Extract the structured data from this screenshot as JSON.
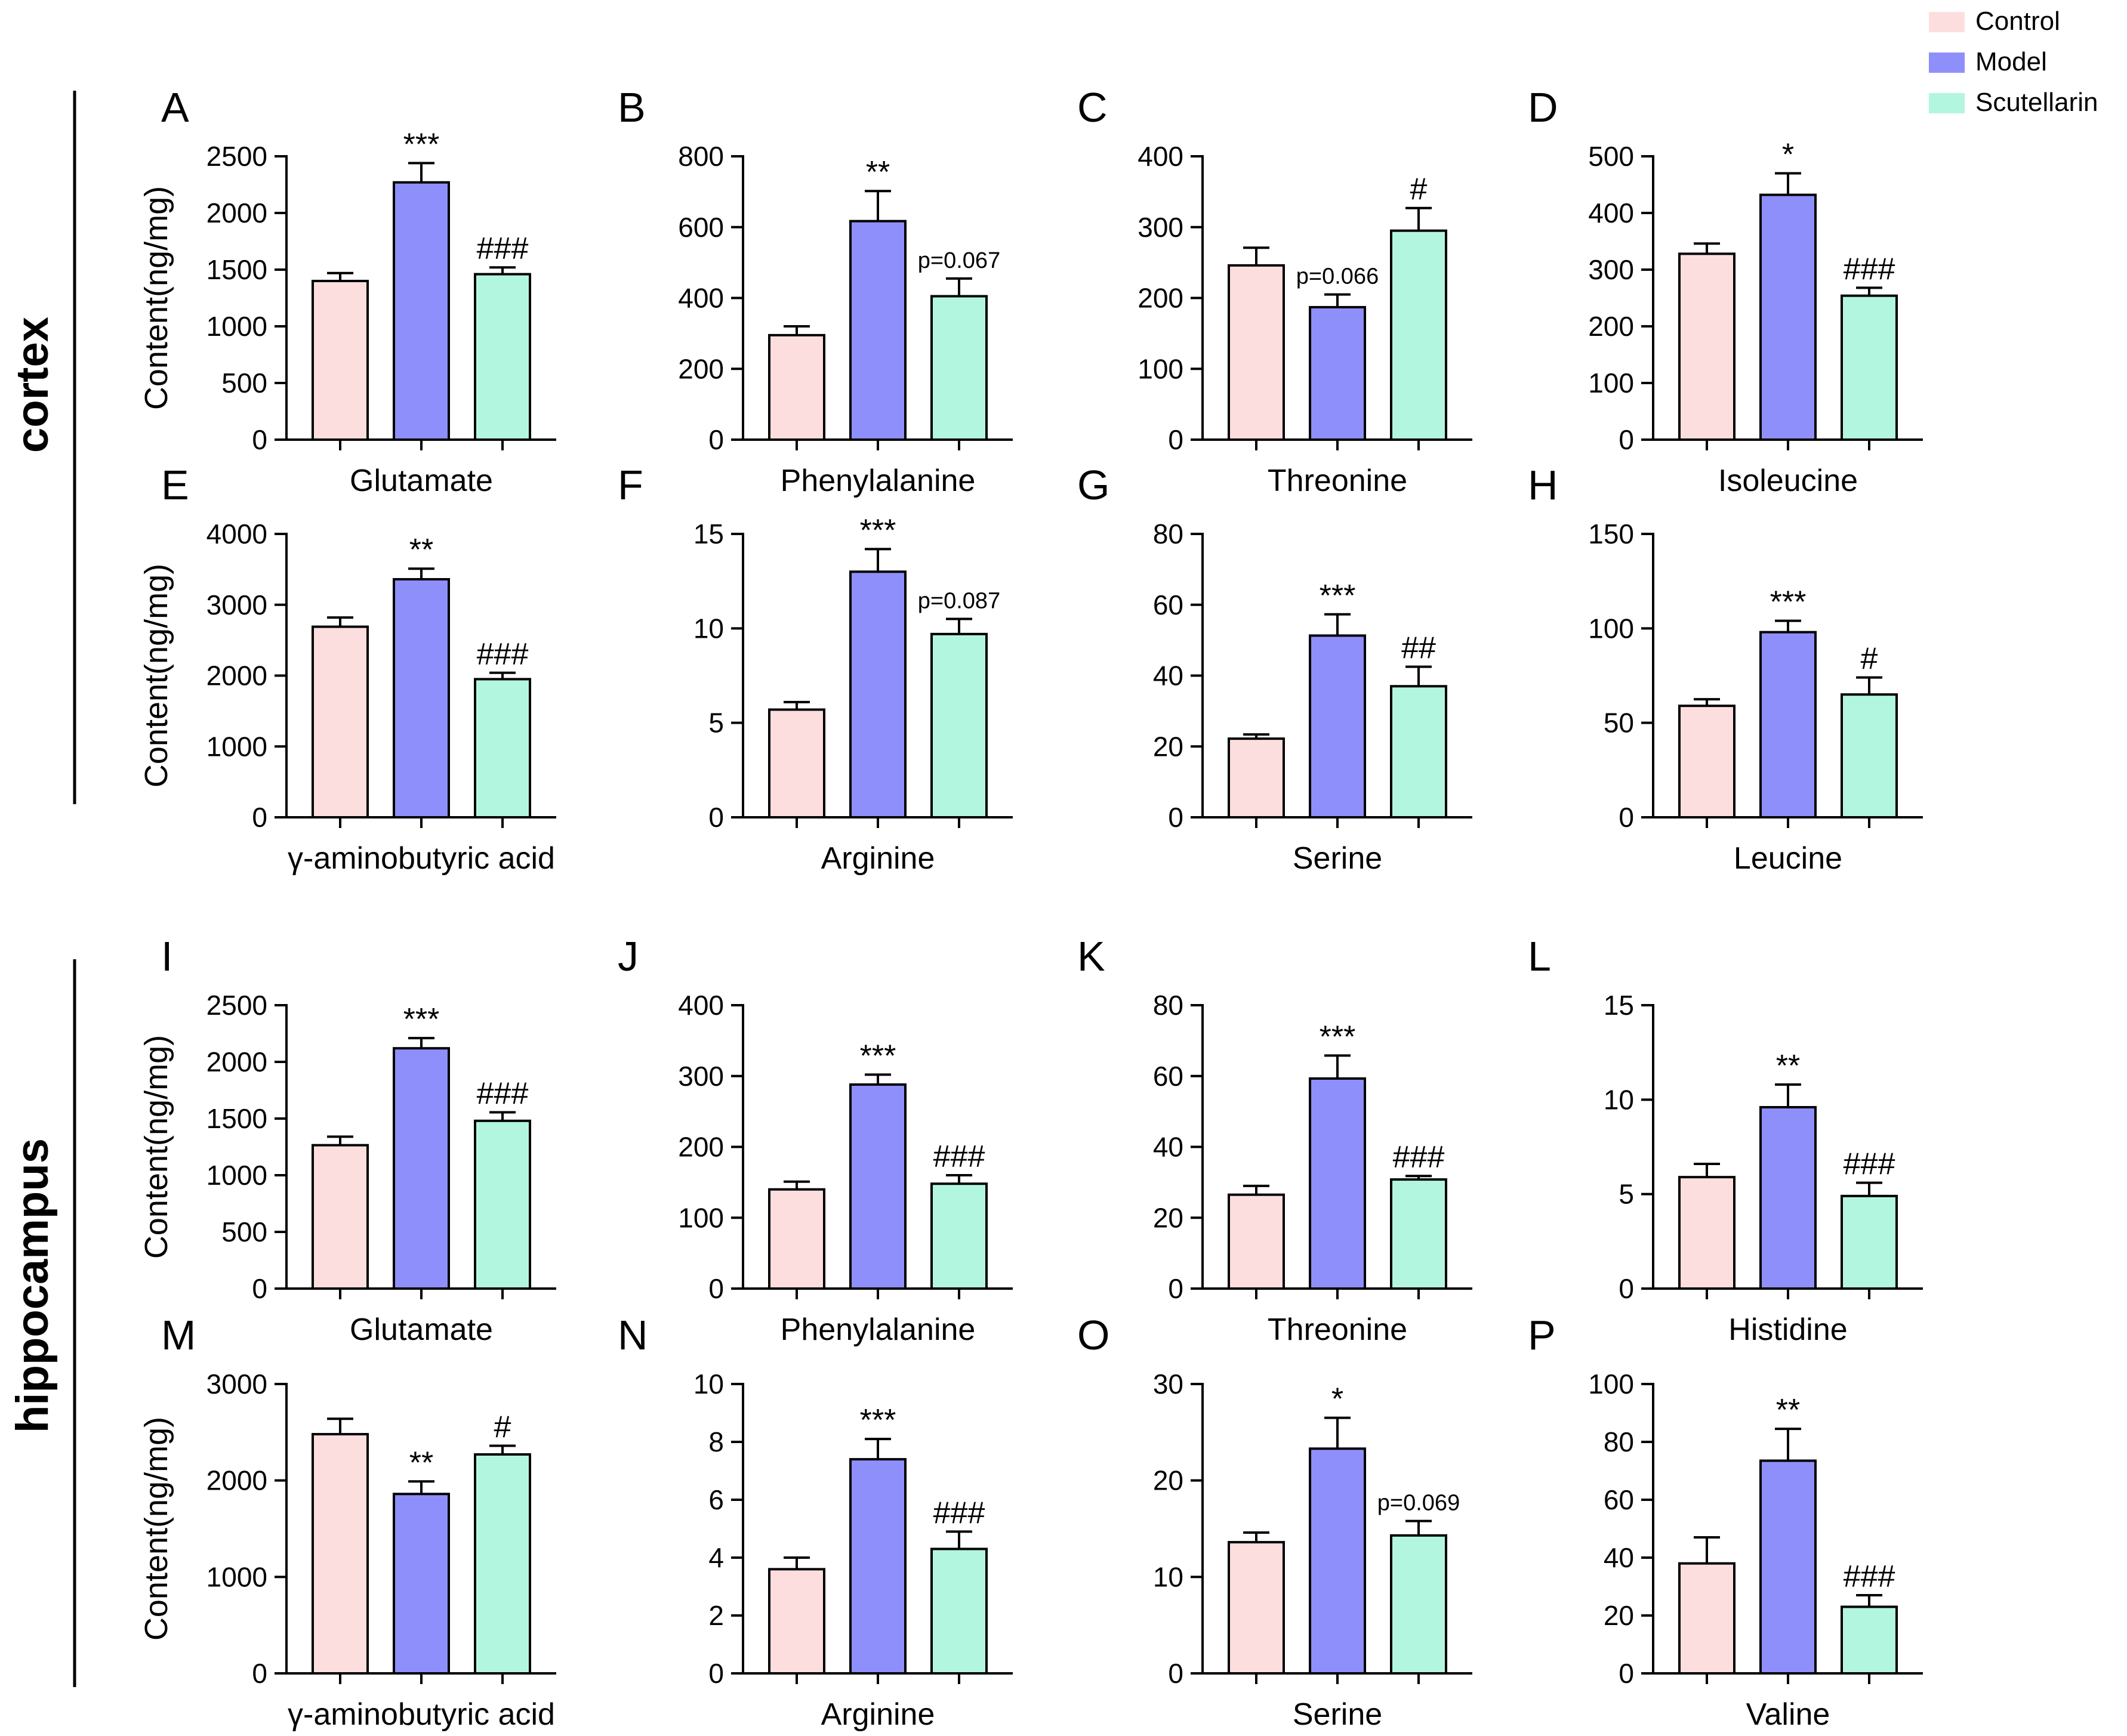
{
  "figure": {
    "groups": [
      {
        "name": "Control",
        "color": "#FDDEDE"
      },
      {
        "name": "Model",
        "color": "#8F8FFB"
      },
      {
        "name": "Scutellarin",
        "color": "#B3F6DF"
      }
    ],
    "region_labels": [
      "cortex",
      "hippocampus"
    ],
    "ylabel": "Content(ng/mg)"
  },
  "chart_data": [
    {
      "panel": "A",
      "type": "bar",
      "title": "Glutamate",
      "ylabel": "Content(ng/mg)",
      "ylim": [
        0,
        2500
      ],
      "ticks": [
        "0",
        "500",
        "1000",
        "1500",
        "2000",
        "2500"
      ],
      "categories": [
        "Control",
        "Model",
        "Scutellarin"
      ],
      "values": [
        1400,
        2270,
        1460
      ],
      "errors": [
        70,
        170,
        60
      ],
      "annotations": [
        "",
        "***",
        "###"
      ]
    },
    {
      "panel": "B",
      "type": "bar",
      "title": "Phenylalanine",
      "ylabel": "",
      "ylim": [
        0,
        800
      ],
      "ticks": [
        "0",
        "200",
        "400",
        "600",
        "800"
      ],
      "categories": [
        "Control",
        "Model",
        "Scutellarin"
      ],
      "values": [
        295,
        617,
        405
      ],
      "errors": [
        25,
        85,
        50
      ],
      "annotations": [
        "",
        "**",
        "p=0.067"
      ]
    },
    {
      "panel": "C",
      "type": "bar",
      "title": "Threonine",
      "ylabel": "",
      "ylim": [
        0,
        400
      ],
      "ticks": [
        "0",
        "100",
        "200",
        "300",
        "400"
      ],
      "categories": [
        "Control",
        "Model",
        "Scutellarin"
      ],
      "values": [
        246,
        187,
        295
      ],
      "errors": [
        25,
        18,
        32
      ],
      "annotations": [
        "",
        "p=0.066",
        "#"
      ]
    },
    {
      "panel": "D",
      "type": "bar",
      "title": "Isoleucine",
      "ylabel": "",
      "ylim": [
        0,
        500
      ],
      "ticks": [
        "0",
        "100",
        "200",
        "300",
        "400",
        "500"
      ],
      "categories": [
        "Control",
        "Model",
        "Scutellarin"
      ],
      "values": [
        328,
        432,
        254
      ],
      "errors": [
        18,
        38,
        14
      ],
      "annotations": [
        "",
        "*",
        "###"
      ]
    },
    {
      "panel": "E",
      "type": "bar",
      "title": "γ-aminobutyric acid",
      "ylabel": "Content(ng/mg)",
      "ylim": [
        0,
        4000
      ],
      "ticks": [
        "0",
        "1000",
        "2000",
        "3000",
        "4000"
      ],
      "categories": [
        "Control",
        "Model",
        "Scutellarin"
      ],
      "values": [
        2690,
        3360,
        1950
      ],
      "errors": [
        130,
        150,
        90
      ],
      "annotations": [
        "",
        "**",
        "###"
      ]
    },
    {
      "panel": "F",
      "type": "bar",
      "title": "Arginine",
      "ylabel": "",
      "ylim": [
        0,
        15
      ],
      "ticks": [
        "0",
        "5",
        "10",
        "15"
      ],
      "categories": [
        "Control",
        "Model",
        "Scutellarin"
      ],
      "values": [
        5.7,
        13.0,
        9.7
      ],
      "errors": [
        0.4,
        1.2,
        0.8
      ],
      "annotations": [
        "",
        "***",
        "p=0.087"
      ]
    },
    {
      "panel": "G",
      "type": "bar",
      "title": "Serine",
      "ylabel": "",
      "ylim": [
        0,
        80
      ],
      "ticks": [
        "0",
        "20",
        "40",
        "60",
        "80"
      ],
      "categories": [
        "Control",
        "Model",
        "Scutellarin"
      ],
      "values": [
        22.2,
        51.3,
        37.0
      ],
      "errors": [
        1.2,
        6.0,
        5.5
      ],
      "annotations": [
        "",
        "***",
        "##"
      ]
    },
    {
      "panel": "H",
      "type": "bar",
      "title": "Leucine",
      "ylabel": "",
      "ylim": [
        0,
        150
      ],
      "ticks": [
        "0",
        "50",
        "100",
        "150"
      ],
      "categories": [
        "Control",
        "Model",
        "Scutellarin"
      ],
      "values": [
        59,
        98,
        65
      ],
      "errors": [
        3.5,
        6,
        9
      ],
      "annotations": [
        "",
        "***",
        "#"
      ]
    },
    {
      "panel": "I",
      "type": "bar",
      "title": "Glutamate",
      "ylabel": "Content(ng/mg)",
      "ylim": [
        0,
        2500
      ],
      "ticks": [
        "0",
        "500",
        "1000",
        "1500",
        "2000",
        "2500"
      ],
      "categories": [
        "Control",
        "Model",
        "Scutellarin"
      ],
      "values": [
        1265,
        2120,
        1480
      ],
      "errors": [
        75,
        90,
        75
      ],
      "annotations": [
        "",
        "***",
        "###"
      ]
    },
    {
      "panel": "J",
      "type": "bar",
      "title": "Phenylalanine",
      "ylabel": "",
      "ylim": [
        0,
        400
      ],
      "ticks": [
        "0",
        "100",
        "200",
        "300",
        "400"
      ],
      "categories": [
        "Control",
        "Model",
        "Scutellarin"
      ],
      "values": [
        140,
        288,
        148
      ],
      "errors": [
        11,
        14,
        12
      ],
      "annotations": [
        "",
        "***",
        "###"
      ]
    },
    {
      "panel": "K",
      "type": "bar",
      "title": "Threonine",
      "ylabel": "",
      "ylim": [
        0,
        80
      ],
      "ticks": [
        "0",
        "20",
        "40",
        "60",
        "80"
      ],
      "categories": [
        "Control",
        "Model",
        "Scutellarin"
      ],
      "values": [
        26.5,
        59.3,
        30.8
      ],
      "errors": [
        2.5,
        6.5,
        1.0
      ],
      "annotations": [
        "",
        "***",
        "###"
      ]
    },
    {
      "panel": "L",
      "type": "bar",
      "title": "Histidine",
      "ylabel": "",
      "ylim": [
        0,
        15
      ],
      "ticks": [
        "0",
        "5",
        "10",
        "15"
      ],
      "categories": [
        "Control",
        "Model",
        "Scutellarin"
      ],
      "values": [
        5.9,
        9.6,
        4.9
      ],
      "errors": [
        0.7,
        1.2,
        0.7
      ],
      "annotations": [
        "",
        "**",
        "###"
      ]
    },
    {
      "panel": "M",
      "type": "bar",
      "title": "γ-aminobutyric acid",
      "ylabel": "Content(ng/mg)",
      "ylim": [
        0,
        3000
      ],
      "ticks": [
        "0",
        "1000",
        "2000",
        "3000"
      ],
      "categories": [
        "Control",
        "Model",
        "Scutellarin"
      ],
      "values": [
        2480,
        1860,
        2270
      ],
      "errors": [
        160,
        130,
        90
      ],
      "annotations": [
        "",
        "**",
        "#"
      ]
    },
    {
      "panel": "N",
      "type": "bar",
      "title": "Arginine",
      "ylabel": "",
      "ylim": [
        0,
        10
      ],
      "ticks": [
        "0",
        "2",
        "4",
        "6",
        "8",
        "10"
      ],
      "categories": [
        "Control",
        "Model",
        "Scutellarin"
      ],
      "values": [
        3.6,
        7.4,
        4.3
      ],
      "errors": [
        0.4,
        0.7,
        0.6
      ],
      "annotations": [
        "",
        "***",
        "###"
      ]
    },
    {
      "panel": "O",
      "type": "bar",
      "title": "Serine",
      "ylabel": "",
      "ylim": [
        0,
        30
      ],
      "ticks": [
        "0",
        "10",
        "20",
        "30"
      ],
      "categories": [
        "Control",
        "Model",
        "Scutellarin"
      ],
      "values": [
        13.6,
        23.3,
        14.3
      ],
      "errors": [
        1.0,
        3.2,
        1.5
      ],
      "annotations": [
        "",
        "*",
        "p=0.069"
      ]
    },
    {
      "panel": "P",
      "type": "bar",
      "title": "Valine",
      "ylabel": "",
      "ylim": [
        0,
        100
      ],
      "ticks": [
        "0",
        "20",
        "40",
        "60",
        "80",
        "100"
      ],
      "categories": [
        "Control",
        "Model",
        "Scutellarin"
      ],
      "values": [
        38,
        73.5,
        23
      ],
      "errors": [
        9,
        11,
        4
      ],
      "annotations": [
        "",
        "**",
        "###"
      ]
    }
  ]
}
